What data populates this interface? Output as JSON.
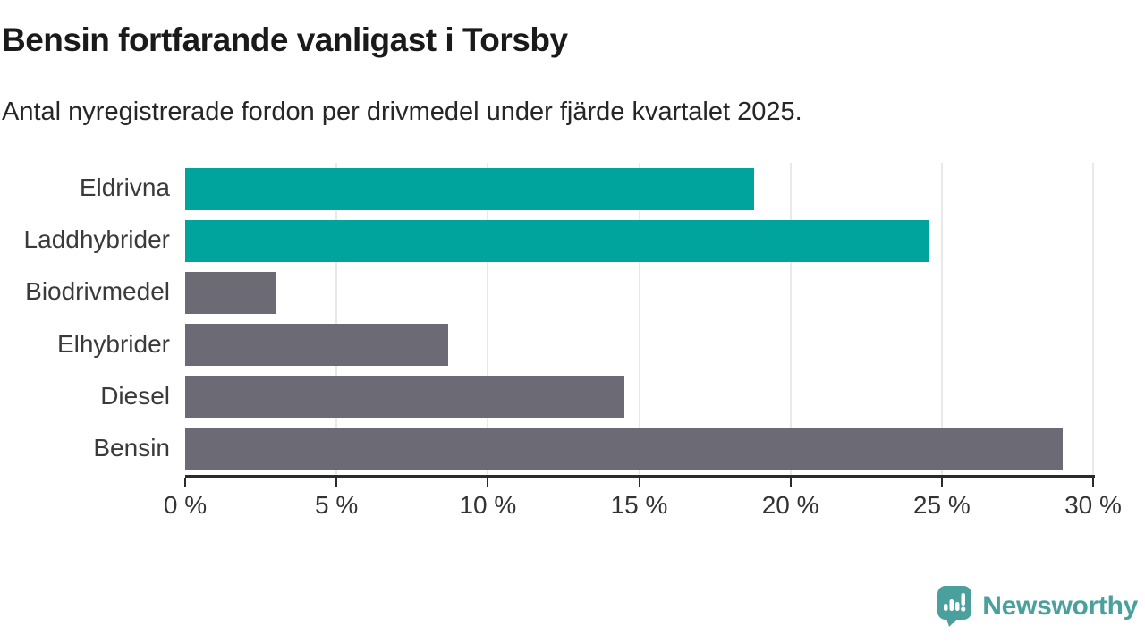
{
  "header": {
    "title": "Bensin fortfarande vanligast i Torsby",
    "subtitle": "Antal nyregistrerade fordon per drivmedel under fjärde kvartalet 2025."
  },
  "chart_data": {
    "type": "bar",
    "orientation": "horizontal",
    "title": "Bensin fortfarande vanligast i Torsby",
    "subtitle": "Antal nyregistrerade fordon per drivmedel under fjärde kvartalet 2025.",
    "categories": [
      "Eldrivna",
      "Laddhybrider",
      "Biodrivmedel",
      "Elhybrider",
      "Diesel",
      "Bensin"
    ],
    "values": [
      18.8,
      24.6,
      3.0,
      8.7,
      14.5,
      29.0
    ],
    "unit": "%",
    "xlim": [
      0,
      30
    ],
    "x_ticks": [
      0,
      5,
      10,
      15,
      20,
      25,
      30
    ],
    "x_tick_labels": [
      "0 %",
      "5 %",
      "10 %",
      "15 %",
      "20 %",
      "25 %",
      "30 %"
    ],
    "bar_colors": [
      "#00a49c",
      "#00a49c",
      "#6c6a75",
      "#6c6a75",
      "#6c6a75",
      "#6c6a75"
    ],
    "highlight_color": "#00a49c",
    "default_color": "#6c6a75",
    "grid": true,
    "gridline_color": "#e9e9eb",
    "legend": "none"
  },
  "footer": {
    "brand": "Newsworthy",
    "brand_color": "#4aa09d"
  }
}
